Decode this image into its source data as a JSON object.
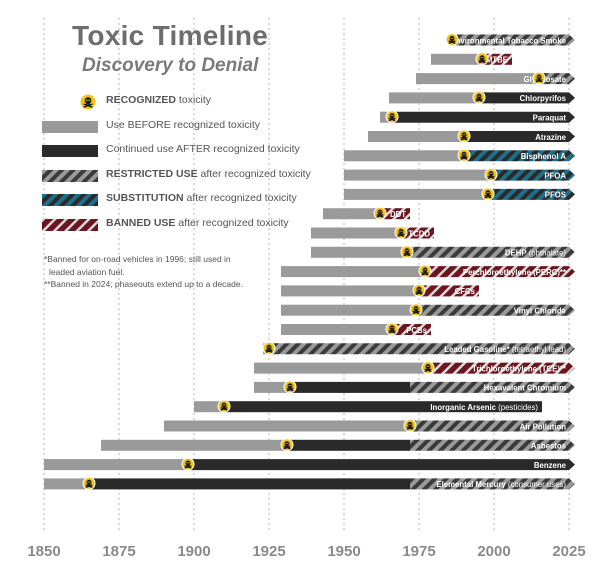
{
  "title": "Toxic Timeline",
  "subtitle": "Discovery to Denial",
  "legend": [
    {
      "key": "recognized",
      "bold": "RECOGNIZED",
      "rest": " toxicity",
      "icon": "skull-crossbones-icon"
    },
    {
      "key": "before",
      "bold": "",
      "rest": "Use BEFORE recognized toxicity",
      "color": "#9a9a9a"
    },
    {
      "key": "after",
      "bold": "",
      "rest": "Continued use AFTER recognized toxicity",
      "color": "#2a2a2a"
    },
    {
      "key": "restricted",
      "bold": "RESTRICTED USE",
      "rest": " after recognized toxicity"
    },
    {
      "key": "substitution",
      "bold": "SUBSTITUTION",
      "rest": " after recognized toxicity"
    },
    {
      "key": "banned",
      "bold": "BANNED USE",
      "rest": " after recognized toxicity"
    }
  ],
  "notes": [
    "*Banned for on-road vehicles in 1996; still used in",
    "leaded aviation fuel.",
    "**Banned in 2024; phaseouts extend up to a decade."
  ],
  "colors": {
    "before": "#9a9a9a",
    "after": "#2a2a2a",
    "stripe_dark": "#3a3a3a",
    "stripe_light": "#9a9a9a",
    "substitution_dark": "#2a2a2a",
    "substitution_light": "#1f6f8b",
    "banned_dark": "#6b1520",
    "banned_light": "#d9d9d9",
    "skull_fill": "#f2c418",
    "grid": "#b5b5b5",
    "axis_text": "#8a8a8a"
  },
  "chart_data": {
    "type": "timeline",
    "x_axis": {
      "ticks": [
        1850,
        1875,
        1900,
        1925,
        1950,
        1975,
        2000,
        2025
      ],
      "range": [
        1850,
        2025
      ]
    },
    "items": [
      {
        "name": "Environmental Tobacco Smoke",
        "segments": [
          {
            "start": 1986,
            "end": 2025,
            "kind": "restricted"
          }
        ],
        "recognized": 1986
      },
      {
        "name": "MTBE",
        "segments": [
          {
            "start": 1979,
            "end": 1996,
            "kind": "before"
          },
          {
            "start": 1996,
            "end": 2006,
            "kind": "banned"
          }
        ],
        "recognized": 1996
      },
      {
        "name": "Glyphosate",
        "segments": [
          {
            "start": 1974,
            "end": 2015,
            "kind": "before"
          },
          {
            "start": 2015,
            "end": 2025,
            "kind": "restricted"
          }
        ],
        "recognized": 2015
      },
      {
        "name": "Chlorpyrifos",
        "segments": [
          {
            "start": 1965,
            "end": 1995,
            "kind": "before"
          },
          {
            "start": 1995,
            "end": 2025,
            "kind": "after"
          }
        ],
        "recognized": 1995
      },
      {
        "name": "Paraquat",
        "segments": [
          {
            "start": 1962,
            "end": 1966,
            "kind": "before"
          },
          {
            "start": 1966,
            "end": 2025,
            "kind": "after"
          }
        ],
        "recognized": 1966
      },
      {
        "name": "Atrazine",
        "segments": [
          {
            "start": 1958,
            "end": 1990,
            "kind": "before"
          },
          {
            "start": 1990,
            "end": 2025,
            "kind": "after"
          }
        ],
        "recognized": 1990
      },
      {
        "name": "Bisphenol A",
        "segments": [
          {
            "start": 1950,
            "end": 1990,
            "kind": "before"
          },
          {
            "start": 1990,
            "end": 2025,
            "kind": "substitution"
          }
        ],
        "recognized": 1990
      },
      {
        "name": "PFOA",
        "segments": [
          {
            "start": 1950,
            "end": 1999,
            "kind": "before"
          },
          {
            "start": 1999,
            "end": 2025,
            "kind": "substitution"
          }
        ],
        "recognized": 1999
      },
      {
        "name": "PFOS",
        "segments": [
          {
            "start": 1950,
            "end": 1998,
            "kind": "before"
          },
          {
            "start": 1998,
            "end": 2025,
            "kind": "substitution"
          }
        ],
        "recognized": 1998
      },
      {
        "name": "DDT",
        "segments": [
          {
            "start": 1943,
            "end": 1962,
            "kind": "before"
          },
          {
            "start": 1962,
            "end": 1972,
            "kind": "banned"
          }
        ],
        "recognized": 1962
      },
      {
        "name": "TCDD",
        "segments": [
          {
            "start": 1939,
            "end": 1969,
            "kind": "before"
          },
          {
            "start": 1969,
            "end": 1980,
            "kind": "banned"
          }
        ],
        "recognized": 1969
      },
      {
        "name": "DEHP (phthalate)",
        "segments": [
          {
            "start": 1939,
            "end": 1971,
            "kind": "before"
          },
          {
            "start": 1971,
            "end": 2025,
            "kind": "restricted"
          }
        ],
        "recognized": 1971
      },
      {
        "name": "Perchloroethylene (PERC)**",
        "segments": [
          {
            "start": 1929,
            "end": 1977,
            "kind": "before"
          },
          {
            "start": 1977,
            "end": 2025,
            "kind": "banned"
          }
        ],
        "recognized": 1977
      },
      {
        "name": "CFCs",
        "segments": [
          {
            "start": 1929,
            "end": 1975,
            "kind": "before"
          },
          {
            "start": 1975,
            "end": 1995,
            "kind": "banned"
          }
        ],
        "recognized": 1975
      },
      {
        "name": "Vinyl Chloride",
        "segments": [
          {
            "start": 1929,
            "end": 1974,
            "kind": "before"
          },
          {
            "start": 1974,
            "end": 2025,
            "kind": "restricted"
          }
        ],
        "recognized": 1974
      },
      {
        "name": "PCBs",
        "segments": [
          {
            "start": 1929,
            "end": 1966,
            "kind": "before"
          },
          {
            "start": 1966,
            "end": 1979,
            "kind": "banned"
          }
        ],
        "recognized": 1966
      },
      {
        "name": "Leaded Gasoline* (tetraethyl lead)",
        "segments": [
          {
            "start": 1923,
            "end": 1925,
            "kind": "before"
          },
          {
            "start": 1925,
            "end": 2025,
            "kind": "restricted"
          }
        ],
        "recognized": 1925
      },
      {
        "name": "Trichloroethylene (TCE)**",
        "segments": [
          {
            "start": 1920,
            "end": 1978,
            "kind": "before"
          },
          {
            "start": 1978,
            "end": 2025,
            "kind": "banned"
          }
        ],
        "recognized": 1978
      },
      {
        "name": "Hexavalent Chromium",
        "segments": [
          {
            "start": 1920,
            "end": 1932,
            "kind": "before"
          },
          {
            "start": 1932,
            "end": 1972,
            "kind": "after"
          },
          {
            "start": 1972,
            "end": 2025,
            "kind": "restricted"
          }
        ],
        "recognized": 1932
      },
      {
        "name": "Inorganic Arsenic (pesticides)",
        "segments": [
          {
            "start": 1900,
            "end": 1910,
            "kind": "before"
          },
          {
            "start": 1910,
            "end": 2016,
            "kind": "after"
          }
        ],
        "recognized": 1910
      },
      {
        "name": "Air Pollution",
        "segments": [
          {
            "start": 1890,
            "end": 1972,
            "kind": "before"
          },
          {
            "start": 1972,
            "end": 2025,
            "kind": "restricted"
          }
        ],
        "recognized": 1972
      },
      {
        "name": "Asbestos",
        "segments": [
          {
            "start": 1869,
            "end": 1931,
            "kind": "before"
          },
          {
            "start": 1931,
            "end": 1972,
            "kind": "after"
          },
          {
            "start": 1972,
            "end": 2025,
            "kind": "restricted"
          }
        ],
        "recognized": 1931
      },
      {
        "name": "Benzene",
        "segments": [
          {
            "start": 1850,
            "end": 1898,
            "kind": "before"
          },
          {
            "start": 1898,
            "end": 2025,
            "kind": "after"
          }
        ],
        "recognized": 1898
      },
      {
        "name": "Elemental Mercury (consumer uses)",
        "segments": [
          {
            "start": 1850,
            "end": 1865,
            "kind": "before"
          },
          {
            "start": 1865,
            "end": 1972,
            "kind": "after"
          },
          {
            "start": 1972,
            "end": 2025,
            "kind": "restricted"
          }
        ],
        "recognized": 1865
      }
    ]
  }
}
